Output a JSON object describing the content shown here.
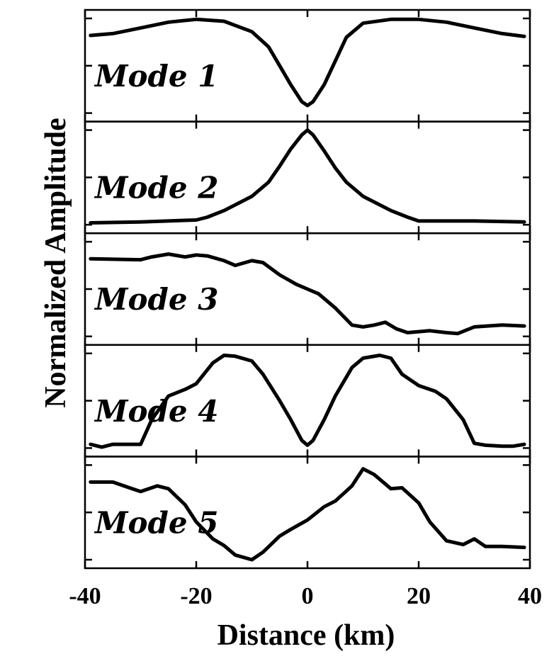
{
  "chart_data": {
    "type": "line",
    "layout": "stacked-panels",
    "xlabel": "Distance (km)",
    "ylabel": "Normalized Amplitude",
    "xlim": [
      -40,
      40
    ],
    "ylim": [
      0,
      1
    ],
    "x_ticks": [
      -40,
      -20,
      0,
      20,
      40
    ],
    "grid": false,
    "line_color": "#000000",
    "panels": [
      {
        "label": "Mode 1",
        "x": [
          -39,
          -35,
          -30,
          -25,
          -20,
          -15,
          -10,
          -7,
          -5,
          -3,
          -1,
          0,
          1,
          3,
          5,
          7,
          10,
          15,
          20,
          25,
          30,
          35,
          39
        ],
        "y": [
          0.82,
          0.84,
          0.9,
          0.96,
          0.99,
          0.97,
          0.86,
          0.7,
          0.5,
          0.3,
          0.12,
          0.08,
          0.12,
          0.3,
          0.55,
          0.8,
          0.95,
          0.99,
          0.99,
          0.96,
          0.9,
          0.84,
          0.81
        ]
      },
      {
        "label": "Mode 2",
        "x": [
          -39,
          -30,
          -20,
          -18,
          -15,
          -10,
          -7,
          -5,
          -3,
          -1,
          0,
          1,
          3,
          5,
          7,
          10,
          15,
          18,
          20,
          30,
          39
        ],
        "y": [
          0.02,
          0.03,
          0.05,
          0.08,
          0.15,
          0.3,
          0.45,
          0.62,
          0.8,
          0.95,
          1.0,
          0.95,
          0.78,
          0.6,
          0.45,
          0.3,
          0.15,
          0.08,
          0.04,
          0.04,
          0.03
        ]
      },
      {
        "label": "Mode 3",
        "x": [
          -39,
          -30,
          -28,
          -25,
          -22,
          -20,
          -18,
          -15,
          -13,
          -10,
          -8,
          -5,
          -2,
          0,
          2,
          5,
          8,
          10,
          12,
          14,
          16,
          18,
          20,
          22,
          25,
          27,
          30,
          35,
          39
        ],
        "y": [
          0.82,
          0.81,
          0.84,
          0.87,
          0.84,
          0.86,
          0.85,
          0.8,
          0.75,
          0.8,
          0.78,
          0.65,
          0.55,
          0.5,
          0.45,
          0.3,
          0.12,
          0.1,
          0.12,
          0.15,
          0.08,
          0.04,
          0.05,
          0.06,
          0.04,
          0.03,
          0.1,
          0.12,
          0.11
        ]
      },
      {
        "label": "Mode 4",
        "x": [
          -39,
          -37,
          -35,
          -30,
          -28,
          -25,
          -22,
          -20,
          -17,
          -15,
          -13,
          -10,
          -8,
          -5,
          -3,
          -1,
          0,
          1,
          3,
          5,
          8,
          10,
          13,
          15,
          17,
          20,
          23,
          25,
          28,
          30,
          32,
          35,
          37,
          39
        ],
        "y": [
          0.04,
          0.01,
          0.04,
          0.04,
          0.3,
          0.55,
          0.62,
          0.68,
          0.9,
          0.98,
          0.97,
          0.92,
          0.78,
          0.5,
          0.3,
          0.08,
          0.03,
          0.08,
          0.3,
          0.55,
          0.85,
          0.95,
          0.98,
          0.95,
          0.78,
          0.66,
          0.6,
          0.52,
          0.3,
          0.05,
          0.03,
          0.02,
          0.02,
          0.04
        ]
      },
      {
        "label": "Mode 5",
        "x": [
          -39,
          -35,
          -32,
          -30,
          -27,
          -25,
          -22,
          -20,
          -17,
          -15,
          -13,
          -10,
          -8,
          -5,
          -3,
          0,
          3,
          5,
          8,
          10,
          12,
          15,
          17,
          20,
          22,
          25,
          28,
          30,
          32,
          35,
          39
        ],
        "y": [
          0.82,
          0.82,
          0.76,
          0.72,
          0.78,
          0.75,
          0.58,
          0.4,
          0.22,
          0.15,
          0.05,
          0.0,
          0.08,
          0.25,
          0.32,
          0.42,
          0.56,
          0.62,
          0.78,
          0.96,
          0.9,
          0.75,
          0.76,
          0.6,
          0.4,
          0.2,
          0.16,
          0.22,
          0.14,
          0.14,
          0.13
        ]
      }
    ]
  }
}
